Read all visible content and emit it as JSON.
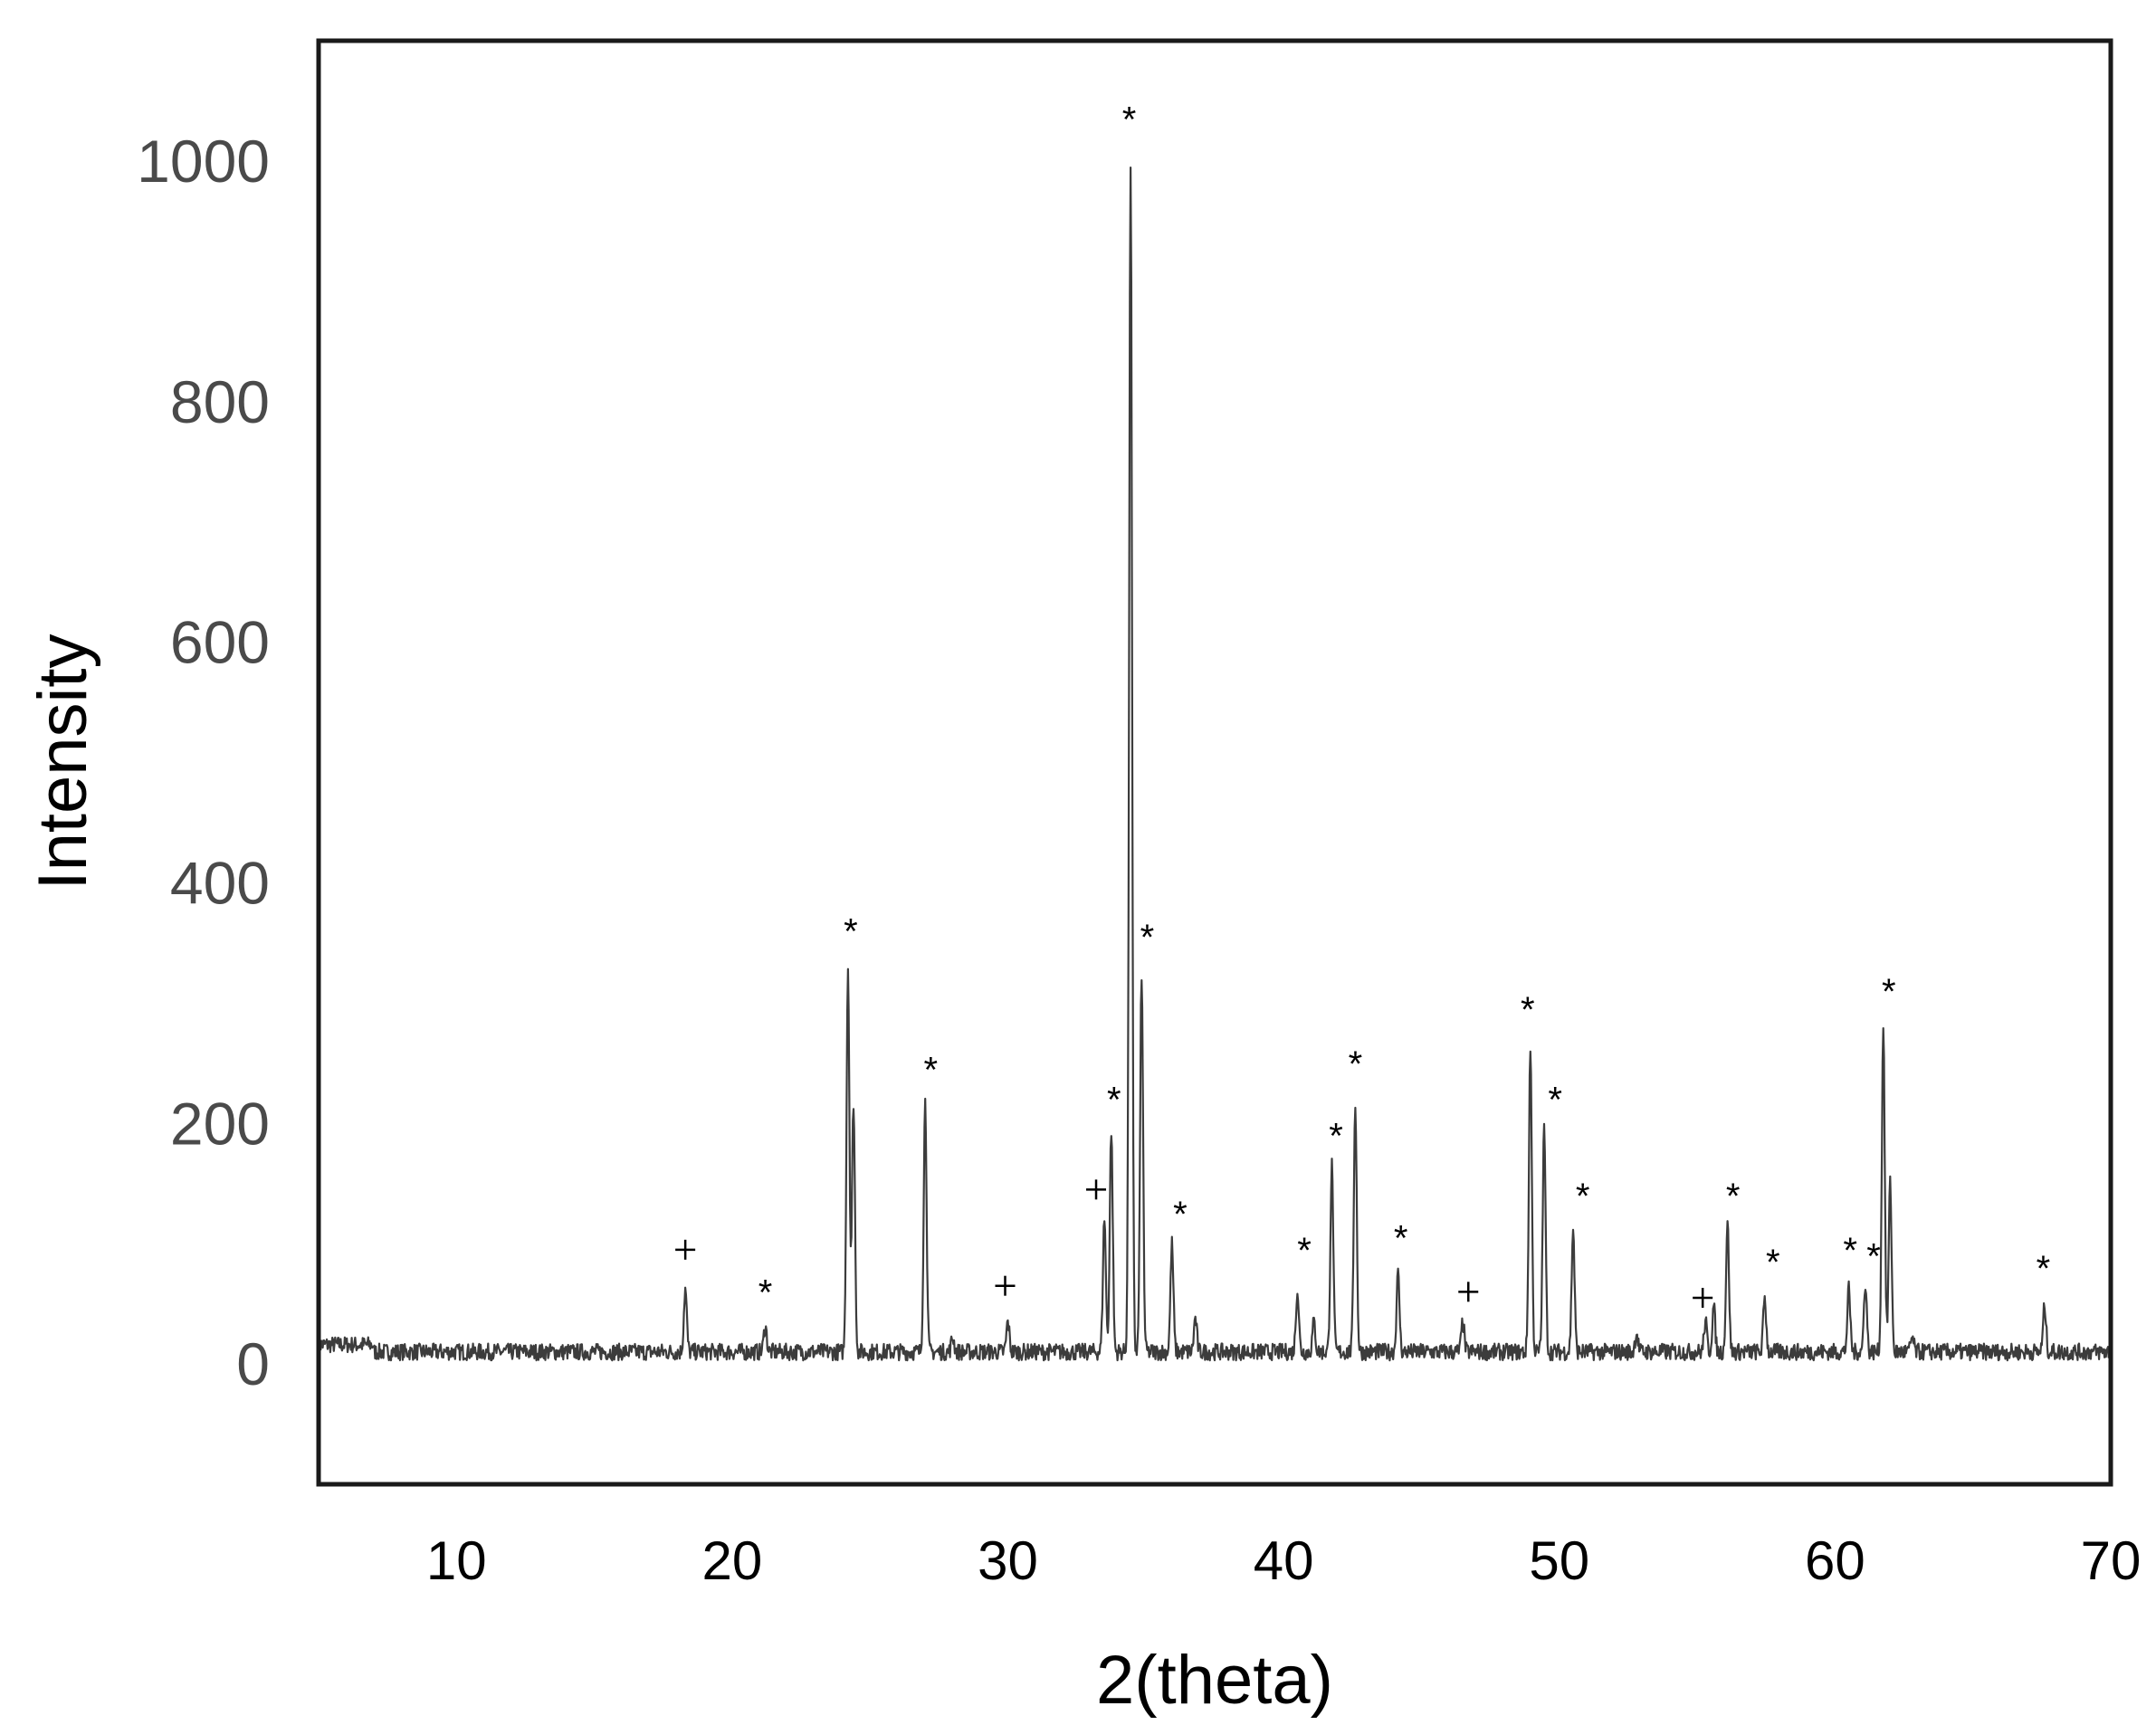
{
  "chart_data": {
    "type": "line",
    "title": "",
    "xlabel": "2(theta)",
    "ylabel": "Intensity",
    "xlim": [
      5,
      70
    ],
    "ylim": [
      -100,
      1100
    ],
    "x_ticks": [
      "10",
      "20",
      "30",
      "40",
      "50",
      "60",
      "70"
    ],
    "y_ticks": [
      "0",
      "200",
      "400",
      "600",
      "800",
      "1000"
    ],
    "grid": false,
    "legend": "none",
    "colors": {
      "line": "#3c3c3c",
      "frame": "#1a1a1a",
      "text": "#000000",
      "ytick_text": "#4a4a4a"
    },
    "baseline": 10,
    "series": [
      {
        "peaks": [
          {
            "x": 18.3,
            "y": 62
          },
          {
            "x": 21.2,
            "y": 32
          },
          {
            "x": 24.2,
            "y": 330
          },
          {
            "x": 24.4,
            "y": 218
          },
          {
            "x": 27.0,
            "y": 218
          },
          {
            "x": 28.0,
            "y": 22
          },
          {
            "x": 30.0,
            "y": 35
          },
          {
            "x": 33.5,
            "y": 122
          },
          {
            "x": 33.75,
            "y": 195
          },
          {
            "x": 34.45,
            "y": 998
          },
          {
            "x": 34.85,
            "y": 325
          },
          {
            "x": 35.95,
            "y": 100
          },
          {
            "x": 36.8,
            "y": 38
          },
          {
            "x": 40.5,
            "y": 62
          },
          {
            "x": 41.1,
            "y": 35
          },
          {
            "x": 41.75,
            "y": 165
          },
          {
            "x": 42.6,
            "y": 218
          },
          {
            "x": 44.15,
            "y": 75
          },
          {
            "x": 46.5,
            "y": 35
          },
          {
            "x": 48.95,
            "y": 265
          },
          {
            "x": 49.45,
            "y": 198
          },
          {
            "x": 50.5,
            "y": 112
          },
          {
            "x": 52.8,
            "y": 26
          },
          {
            "x": 55.3,
            "y": 35
          },
          {
            "x": 55.6,
            "y": 48
          },
          {
            "x": 56.1,
            "y": 118
          },
          {
            "x": 57.45,
            "y": 55
          },
          {
            "x": 60.5,
            "y": 62
          },
          {
            "x": 61.1,
            "y": 68
          },
          {
            "x": 61.75,
            "y": 282
          },
          {
            "x": 62.0,
            "y": 150
          },
          {
            "x": 62.8,
            "y": 22
          },
          {
            "x": 67.6,
            "y": 48
          }
        ]
      }
    ],
    "annotations": [
      {
        "text": "+",
        "x": 18.3,
        "y": 95
      },
      {
        "text": "*",
        "x": 21.2,
        "y": 60
      },
      {
        "text": "*",
        "x": 24.3,
        "y": 360
      },
      {
        "text": "*",
        "x": 27.2,
        "y": 245
      },
      {
        "text": "+",
        "x": 29.9,
        "y": 65
      },
      {
        "text": "+",
        "x": 33.2,
        "y": 145
      },
      {
        "text": "*",
        "x": 33.85,
        "y": 220
      },
      {
        "text": "*",
        "x": 34.4,
        "y": 1035
      },
      {
        "text": "*",
        "x": 35.05,
        "y": 355
      },
      {
        "text": "*",
        "x": 36.25,
        "y": 125
      },
      {
        "text": "*",
        "x": 40.75,
        "y": 95
      },
      {
        "text": "*",
        "x": 41.9,
        "y": 190
      },
      {
        "text": "*",
        "x": 42.6,
        "y": 250
      },
      {
        "text": "*",
        "x": 44.25,
        "y": 105
      },
      {
        "text": "+",
        "x": 46.7,
        "y": 60
      },
      {
        "text": "*",
        "x": 48.85,
        "y": 295
      },
      {
        "text": "*",
        "x": 49.85,
        "y": 220
      },
      {
        "text": "*",
        "x": 50.85,
        "y": 140
      },
      {
        "text": "+",
        "x": 55.2,
        "y": 55
      },
      {
        "text": "*",
        "x": 56.3,
        "y": 140
      },
      {
        "text": "*",
        "x": 57.75,
        "y": 85
      },
      {
        "text": "*",
        "x": 60.55,
        "y": 95
      },
      {
        "text": "*",
        "x": 61.4,
        "y": 90
      },
      {
        "text": "*",
        "x": 61.95,
        "y": 310
      },
      {
        "text": "*",
        "x": 67.55,
        "y": 80
      }
    ]
  }
}
